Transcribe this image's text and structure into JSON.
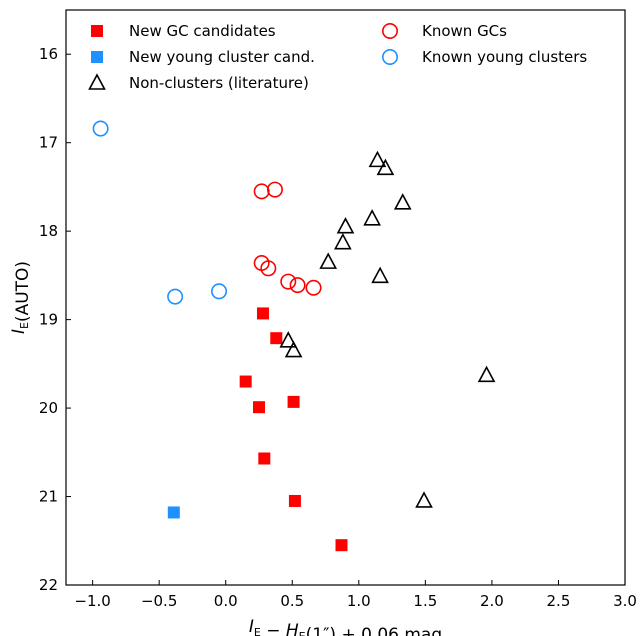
{
  "chart_data": {
    "type": "scatter",
    "xlim": [
      -1.2,
      3.0
    ],
    "ylim": [
      22,
      15.5
    ],
    "y_inverted": true,
    "grid": false,
    "legend_placement": "top",
    "x_ticks": [
      -1.0,
      -0.5,
      0.0,
      0.5,
      1.0,
      1.5,
      2.0,
      2.5,
      3.0
    ],
    "x_tick_labels": [
      "−1.0",
      "−0.5",
      "0.0",
      "0.5",
      "1.0",
      "1.5",
      "2.0",
      "2.5",
      "3.0"
    ],
    "y_ticks": [
      16,
      17,
      18,
      19,
      20,
      21,
      22
    ],
    "y_tick_labels": [
      "16",
      "17",
      "18",
      "19",
      "20",
      "21",
      "22"
    ],
    "xlabel": {
      "parts": [
        {
          "t": "I",
          "style": "italic"
        },
        {
          "t": "E",
          "style": "sub"
        },
        {
          "t": " − ",
          "style": "normal"
        },
        {
          "t": "H",
          "style": "italic"
        },
        {
          "t": "E",
          "style": "sub"
        },
        {
          "t": "(1″) + 0.06 mag",
          "style": "normal"
        }
      ]
    },
    "ylabel": {
      "parts": [
        {
          "t": "I",
          "style": "italic"
        },
        {
          "t": "E",
          "style": "sub"
        },
        {
          "t": "(AUTO)",
          "style": "normal"
        }
      ]
    },
    "series": [
      {
        "name": "New GC candidates",
        "marker": "square-filled",
        "color": "#ff0000",
        "legend_col": 0,
        "legend_row": 0,
        "x": [
          0.28,
          0.38,
          0.15,
          0.25,
          0.51,
          0.29,
          0.52,
          0.87
        ],
        "y": [
          18.93,
          19.21,
          19.7,
          19.99,
          19.93,
          20.57,
          21.05,
          21.55
        ]
      },
      {
        "name": "New young cluster cand.",
        "marker": "square-filled",
        "color": "#1e90ff",
        "legend_col": 0,
        "legend_row": 1,
        "x": [
          -0.39
        ],
        "y": [
          21.18
        ]
      },
      {
        "name": "Non-clusters (literature)",
        "marker": "triangle-open",
        "color": "#000000",
        "legend_col": 0,
        "legend_row": 2,
        "x": [
          1.14,
          1.2,
          1.33,
          0.9,
          1.1,
          0.88,
          0.77,
          1.16,
          0.47,
          0.51,
          1.96,
          1.49
        ],
        "y": [
          17.2,
          17.29,
          17.68,
          17.95,
          17.86,
          18.13,
          18.35,
          18.51,
          19.24,
          19.35,
          19.63,
          21.05
        ]
      },
      {
        "name": "Known GCs",
        "marker": "circle-open",
        "color": "#ff0000",
        "legend_col": 1,
        "legend_row": 0,
        "x": [
          0.27,
          0.37,
          0.27,
          0.32,
          0.47,
          0.54,
          0.66
        ],
        "y": [
          17.55,
          17.53,
          18.36,
          18.42,
          18.57,
          18.61,
          18.64
        ]
      },
      {
        "name": "Known young clusters",
        "marker": "circle-open",
        "color": "#1e90ff",
        "legend_col": 1,
        "legend_row": 1,
        "x": [
          -0.94,
          -0.38,
          -0.05
        ],
        "y": [
          16.84,
          18.74,
          18.68
        ]
      }
    ]
  }
}
